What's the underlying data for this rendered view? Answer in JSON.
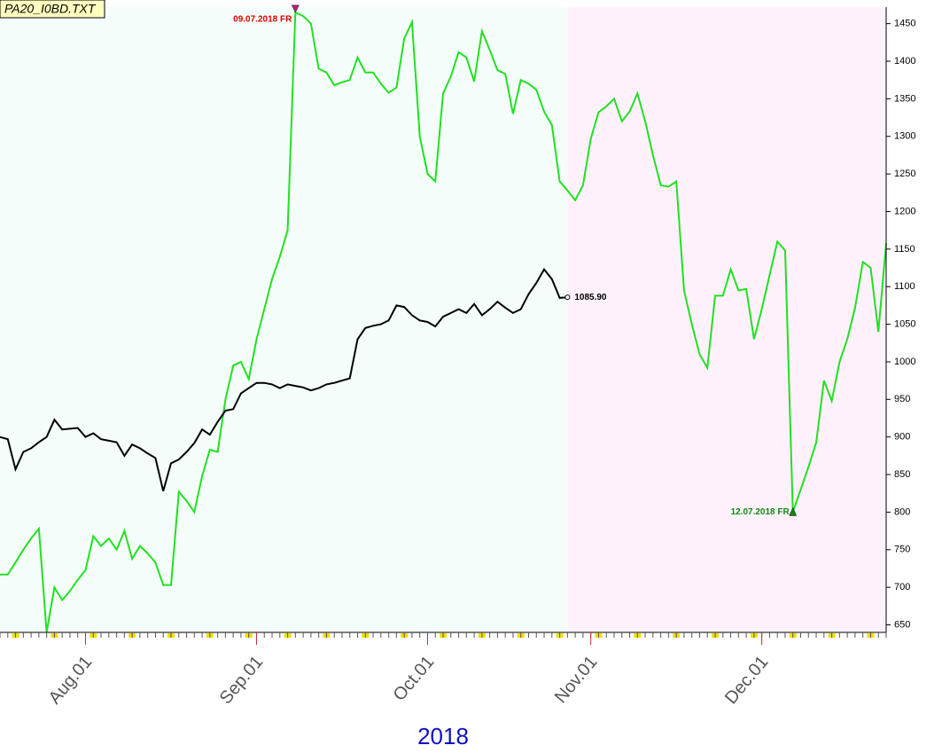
{
  "chart_data": {
    "type": "line",
    "title": "PA20_I0BD.TXT",
    "xlabel": "2018",
    "xlim": [
      0,
      114
    ],
    "ylim": [
      640,
      1472
    ],
    "yticks": [
      650,
      700,
      750,
      800,
      850,
      900,
      950,
      1000,
      1050,
      1100,
      1150,
      1200,
      1250,
      1300,
      1350,
      1400,
      1450
    ],
    "xticks": [
      {
        "value": 11,
        "label": "Aug.01"
      },
      {
        "value": 33,
        "label": "Sep.01"
      },
      {
        "value": 55,
        "label": "Oct.01"
      },
      {
        "value": 76,
        "label": "Nov.01"
      },
      {
        "value": 98,
        "label": "Dec.01"
      }
    ],
    "series": [
      {
        "color": "#22e022",
        "x": [
          0,
          1,
          2,
          3,
          4,
          5,
          6,
          7,
          8,
          9,
          10,
          11,
          12,
          13,
          14,
          15,
          16,
          17,
          18,
          19,
          20,
          21,
          22,
          23,
          24,
          25,
          26,
          27,
          28,
          29,
          30,
          31,
          32,
          33,
          34,
          35,
          36,
          37,
          38,
          39,
          40,
          41,
          42,
          43,
          44,
          45,
          46,
          47,
          48,
          49,
          50,
          51,
          52,
          53,
          54,
          55,
          56,
          57,
          58,
          59,
          60,
          61,
          62,
          63,
          64,
          65,
          66,
          67,
          68,
          69,
          70,
          71,
          72,
          73,
          74,
          75,
          76,
          77,
          78,
          79,
          80,
          81,
          82,
          83,
          84,
          85,
          86,
          87,
          88,
          89,
          90,
          91,
          92,
          93,
          94,
          95,
          96,
          97,
          98,
          99,
          100,
          101,
          102,
          103,
          104,
          105,
          106,
          107,
          108,
          109,
          110,
          111,
          112,
          113,
          114
        ],
        "values": [
          717,
          717,
          733,
          750,
          765,
          778,
          640,
          700,
          683,
          695,
          710,
          723,
          768,
          755,
          765,
          750,
          775,
          738,
          755,
          745,
          733,
          703,
          703,
          827,
          815,
          800,
          848,
          883,
          880,
          950,
          995,
          1000,
          977,
          1030,
          1070,
          1110,
          1140,
          1175,
          1465,
          1460,
          1450,
          1390,
          1385,
          1368,
          1372,
          1375,
          1405,
          1385,
          1385,
          1370,
          1358,
          1365,
          1430,
          1452,
          1300,
          1250,
          1240,
          1357,
          1380,
          1412,
          1405,
          1373,
          1440,
          1415,
          1388,
          1383,
          1330,
          1375,
          1370,
          1362,
          1333,
          1315,
          1240,
          1228,
          1215,
          1235,
          1297,
          1332,
          1340,
          1350,
          1320,
          1333,
          1357,
          1320,
          1275,
          1235,
          1233,
          1240,
          1095,
          1050,
          1010,
          992,
          1088,
          1088,
          1123,
          1095,
          1097,
          1030,
          1070,
          1115,
          1160,
          1148,
          800,
          830,
          860,
          893,
          975,
          948,
          1000,
          1030,
          1072,
          1133,
          1125,
          1040,
          1158
        ]
      },
      {
        "color": "#000000",
        "x": [
          0,
          1,
          2,
          3,
          4,
          5,
          6,
          7,
          8,
          9,
          10,
          11,
          12,
          13,
          14,
          15,
          16,
          17,
          18,
          19,
          20,
          21,
          22,
          23,
          24,
          25,
          26,
          27,
          28,
          29,
          30,
          31,
          32,
          33,
          34,
          35,
          36,
          37,
          38,
          39,
          40,
          41,
          42,
          43,
          44,
          45,
          46,
          47,
          48,
          49,
          50,
          51,
          52,
          53,
          54,
          55,
          56,
          57,
          58,
          59,
          60,
          61,
          62,
          63,
          64,
          65,
          66,
          67,
          68,
          69,
          70,
          71,
          72,
          73
        ],
        "values": [
          900,
          897,
          857,
          880,
          885,
          893,
          900,
          923,
          910,
          911,
          912,
          900,
          905,
          897,
          895,
          893,
          875,
          890,
          885,
          878,
          872,
          828,
          865,
          870,
          880,
          892,
          910,
          903,
          920,
          935,
          937,
          958,
          965,
          972,
          972,
          970,
          965,
          970,
          968,
          966,
          962,
          965,
          970,
          972,
          975,
          978,
          1030,
          1045,
          1048,
          1050,
          1055,
          1075,
          1073,
          1062,
          1055,
          1053,
          1047,
          1060,
          1065,
          1070,
          1065,
          1077,
          1062,
          1070,
          1080,
          1072,
          1065,
          1070,
          1090,
          1105,
          1123,
          1110,
          1085,
          1085.9
        ]
      }
    ],
    "annotations": [
      {
        "text": "09.07.2018 FR",
        "x": 38,
        "y": 1465,
        "color": "#dd0000"
      },
      {
        "text": "12.07.2018 FR",
        "x": 102,
        "y": 800,
        "color": "#118811"
      },
      {
        "text": "1085.90",
        "x": 73,
        "y": 1085.9,
        "color": "#000000"
      }
    ]
  }
}
